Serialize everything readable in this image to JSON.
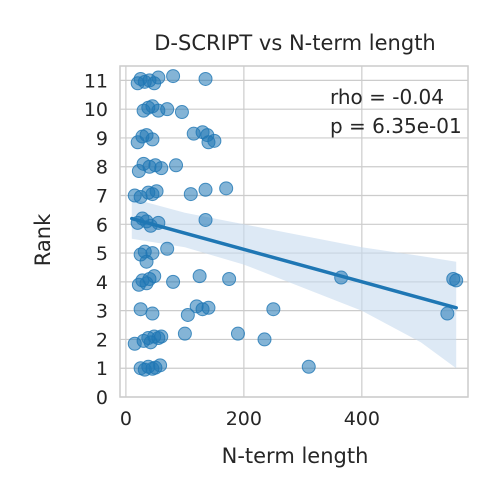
{
  "chart_data": {
    "type": "scatter",
    "title": "D-SCRIPT vs N-term length",
    "xlabel": "N-term length",
    "ylabel": "Rank",
    "xlim": [
      -10,
      580
    ],
    "ylim": [
      0,
      11.5
    ],
    "xticks": [
      0,
      200,
      400
    ],
    "yticks": [
      0,
      1,
      2,
      3,
      4,
      5,
      6,
      7,
      8,
      9,
      10,
      11
    ],
    "grid": true,
    "colors": {
      "points": "#1f77b4",
      "line": "#1f77b4",
      "band": "#c6dbef",
      "grid": "#cccccc"
    },
    "annotations": {
      "rho": "rho = -0.04",
      "p": "p = 6.35e-01"
    },
    "regression": {
      "x": [
        10,
        560
      ],
      "y": [
        6.2,
        3.1
      ]
    },
    "ci_band": {
      "x": [
        10,
        100,
        200,
        300,
        400,
        500,
        560
      ],
      "lower": [
        5.5,
        5.2,
        4.6,
        3.8,
        3.0,
        1.9,
        1.0
      ],
      "upper": [
        6.9,
        6.4,
        6.0,
        5.6,
        5.2,
        4.9,
        4.7
      ]
    },
    "points": [
      {
        "x": 25,
        "y": 1
      },
      {
        "x": 32,
        "y": 0.95
      },
      {
        "x": 38,
        "y": 1.05
      },
      {
        "x": 45,
        "y": 0.98
      },
      {
        "x": 50,
        "y": 1.02
      },
      {
        "x": 58,
        "y": 1.1
      },
      {
        "x": 310,
        "y": 1.05
      },
      {
        "x": 15,
        "y": 1.85
      },
      {
        "x": 30,
        "y": 1.95
      },
      {
        "x": 38,
        "y": 2.05
      },
      {
        "x": 42,
        "y": 1.9
      },
      {
        "x": 48,
        "y": 2.1
      },
      {
        "x": 55,
        "y": 2.05
      },
      {
        "x": 100,
        "y": 2.2
      },
      {
        "x": 190,
        "y": 2.2
      },
      {
        "x": 235,
        "y": 2
      },
      {
        "x": 60,
        "y": 2.1
      },
      {
        "x": 25,
        "y": 3.05
      },
      {
        "x": 45,
        "y": 2.9
      },
      {
        "x": 105,
        "y": 2.85
      },
      {
        "x": 120,
        "y": 3.15
      },
      {
        "x": 130,
        "y": 3.05
      },
      {
        "x": 140,
        "y": 3.1
      },
      {
        "x": 250,
        "y": 3.05
      },
      {
        "x": 545,
        "y": 2.9
      },
      {
        "x": 22,
        "y": 3.9
      },
      {
        "x": 28,
        "y": 4.05
      },
      {
        "x": 35,
        "y": 3.95
      },
      {
        "x": 40,
        "y": 4.1
      },
      {
        "x": 48,
        "y": 4.2
      },
      {
        "x": 80,
        "y": 4
      },
      {
        "x": 125,
        "y": 4.2
      },
      {
        "x": 175,
        "y": 4.1
      },
      {
        "x": 365,
        "y": 4.15
      },
      {
        "x": 555,
        "y": 4.1
      },
      {
        "x": 560,
        "y": 4.05
      },
      {
        "x": 25,
        "y": 4.95
      },
      {
        "x": 32,
        "y": 5.05
      },
      {
        "x": 45,
        "y": 5
      },
      {
        "x": 70,
        "y": 5.15
      },
      {
        "x": 35,
        "y": 4.7
      },
      {
        "x": 20,
        "y": 6.05
      },
      {
        "x": 28,
        "y": 6.2
      },
      {
        "x": 35,
        "y": 6.1
      },
      {
        "x": 42,
        "y": 5.95
      },
      {
        "x": 55,
        "y": 6.05
      },
      {
        "x": 135,
        "y": 6.15
      },
      {
        "x": 15,
        "y": 7
      },
      {
        "x": 25,
        "y": 6.95
      },
      {
        "x": 38,
        "y": 7.1
      },
      {
        "x": 45,
        "y": 7.05
      },
      {
        "x": 52,
        "y": 7.15
      },
      {
        "x": 110,
        "y": 7.05
      },
      {
        "x": 135,
        "y": 7.2
      },
      {
        "x": 170,
        "y": 7.25
      },
      {
        "x": 22,
        "y": 7.85
      },
      {
        "x": 30,
        "y": 8.1
      },
      {
        "x": 40,
        "y": 8
      },
      {
        "x": 50,
        "y": 8.05
      },
      {
        "x": 60,
        "y": 7.95
      },
      {
        "x": 85,
        "y": 8.05
      },
      {
        "x": 20,
        "y": 8.85
      },
      {
        "x": 28,
        "y": 9.05
      },
      {
        "x": 35,
        "y": 9.1
      },
      {
        "x": 45,
        "y": 8.95
      },
      {
        "x": 115,
        "y": 9.15
      },
      {
        "x": 130,
        "y": 9.2
      },
      {
        "x": 138,
        "y": 9.1
      },
      {
        "x": 140,
        "y": 8.85
      },
      {
        "x": 150,
        "y": 8.9
      },
      {
        "x": 30,
        "y": 9.95
      },
      {
        "x": 38,
        "y": 10.05
      },
      {
        "x": 45,
        "y": 10.1
      },
      {
        "x": 55,
        "y": 9.95
      },
      {
        "x": 70,
        "y": 10
      },
      {
        "x": 95,
        "y": 9.9
      },
      {
        "x": 25,
        "y": 11.05
      },
      {
        "x": 32,
        "y": 10.95
      },
      {
        "x": 40,
        "y": 11
      },
      {
        "x": 48,
        "y": 10.9
      },
      {
        "x": 80,
        "y": 11.15
      },
      {
        "x": 135,
        "y": 11.05
      },
      {
        "x": 20,
        "y": 10.9
      },
      {
        "x": 55,
        "y": 11.1
      }
    ]
  }
}
